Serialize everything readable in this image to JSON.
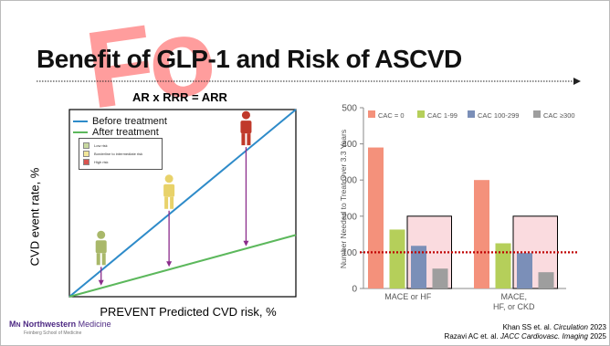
{
  "slide": {
    "title": "Benefit of GLP-1 and Risk of ASCVD",
    "equation": "AR x RRR = ARR",
    "watermark": "Fo",
    "logo_name": "Northwestern",
    "logo_name2": "Medicine",
    "logo_mark": "M",
    "logo_sub": "Feinberg School of Medicine",
    "citation_1_authors": "Khan SS et. al.",
    "citation_1_journal": "Circulation",
    "citation_1_year": "2023",
    "citation_2_authors": "Razavi AC et. al.",
    "citation_2_journal": "JACC Cardiovasc. Imaging",
    "citation_2_year": "2025"
  },
  "chart_data": [
    {
      "type": "line",
      "title": "",
      "xlabel": "PREVENT Predicted CVD risk, %",
      "ylabel": "CVD event rate, %",
      "series": [
        {
          "name": "Before treatment",
          "color": "#2e8bc9",
          "x": [
            0,
            1
          ],
          "y": [
            0,
            1
          ]
        },
        {
          "name": "After treatment",
          "color": "#5cb85c",
          "x": [
            0,
            1
          ],
          "y": [
            0,
            0.33
          ]
        }
      ],
      "risk_legend": [
        {
          "label": "Low risk",
          "color": "#c8d9a0"
        },
        {
          "label": "Borderline to intermediate risk",
          "color": "#f2e79a"
        },
        {
          "label": "High risk",
          "color": "#d9534f"
        }
      ],
      "people": [
        {
          "level": "low",
          "color": "#a9b86a",
          "x": 0.14,
          "y_before": 0.14,
          "y_after": 0.05
        },
        {
          "level": "intermediate",
          "color": "#e8d26a",
          "x": 0.44,
          "y_before": 0.44,
          "y_after": 0.15
        },
        {
          "level": "high",
          "color": "#c0392b",
          "x": 0.78,
          "y_before": 0.78,
          "y_after": 0.26
        }
      ],
      "arrow_color": "#8b2c8b",
      "grid": false
    },
    {
      "type": "bar",
      "title": "",
      "xlabel": "",
      "ylabel": "Number Needed to Treat Over 3.3 Years",
      "ylim": [
        0,
        500
      ],
      "yticks": [
        0,
        100,
        200,
        300,
        400,
        500
      ],
      "categories": [
        "MACE or HF",
        "MACE,\nHF, or CKD"
      ],
      "category_lines": [
        [
          "MACE or HF"
        ],
        [
          "MACE,",
          "HF, or CKD"
        ]
      ],
      "series": [
        {
          "name": "CAC = 0",
          "color": "#f4917b",
          "values": [
            390,
            300
          ]
        },
        {
          "name": "CAC 1-99",
          "color": "#b5cf5a",
          "values": [
            163,
            125
          ]
        },
        {
          "name": "CAC 100-299",
          "color": "#7b8fb8",
          "values": [
            118,
            98
          ]
        },
        {
          "name": "CAC ≥300",
          "color": "#9e9e9e",
          "values": [
            55,
            45
          ]
        }
      ],
      "reference_line": {
        "value": 100,
        "color": "#c00000",
        "style": "dotted"
      },
      "highlight_box_color": "#f7c3c9",
      "legend_position": "top",
      "grid": false
    }
  ]
}
